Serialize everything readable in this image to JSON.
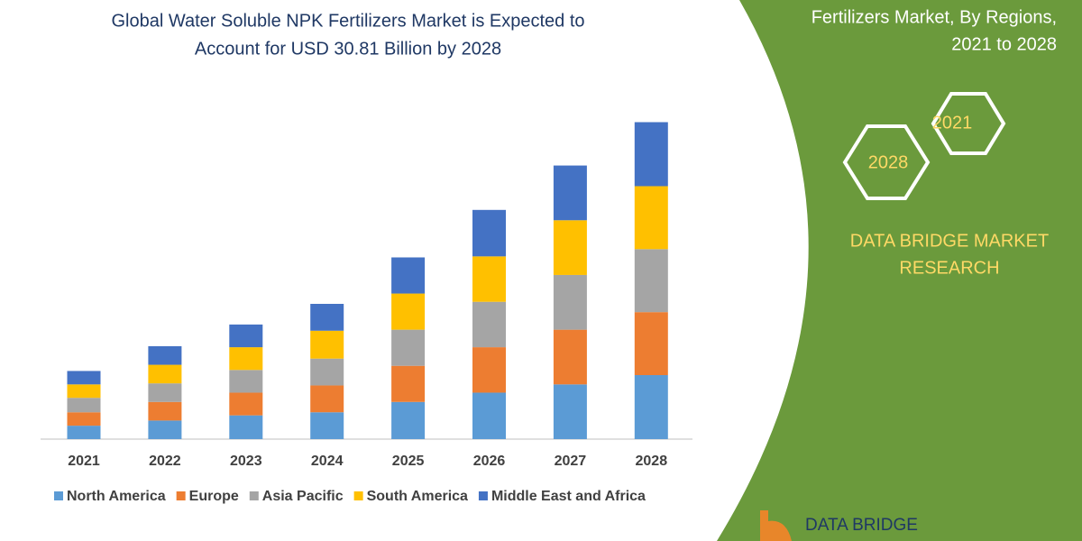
{
  "chart_data": {
    "type": "stacked-bar",
    "title": [
      "Global Water Soluble NPK Fertilizers Market is Expected to",
      "Account for USD 30.81 Billion by 2028"
    ],
    "categories": [
      "2021",
      "2022",
      "2023",
      "2024",
      "2025",
      "2026",
      "2027",
      "2028"
    ],
    "series": [
      {
        "name": "North America",
        "color": "#5b9bd5",
        "values": [
          1.3,
          1.8,
          2.3,
          2.6,
          3.6,
          4.5,
          5.3,
          6.2
        ]
      },
      {
        "name": "Europe",
        "color": "#ed7d31",
        "values": [
          1.3,
          1.8,
          2.2,
          2.6,
          3.5,
          4.4,
          5.3,
          6.1
        ]
      },
      {
        "name": "Asia Pacific",
        "color": "#a5a5a5",
        "values": [
          1.4,
          1.8,
          2.2,
          2.6,
          3.5,
          4.4,
          5.3,
          6.1
        ]
      },
      {
        "name": "South America",
        "color": "#ffc000",
        "values": [
          1.3,
          1.8,
          2.2,
          2.7,
          3.5,
          4.4,
          5.3,
          6.1
        ]
      },
      {
        "name": "Middle East and Africa",
        "color": "#4472c4",
        "values": [
          1.3,
          1.8,
          2.2,
          2.6,
          3.5,
          4.5,
          5.3,
          6.2
        ]
      }
    ]
  },
  "panel": {
    "heading": [
      "Fertilizers Market, By Regions,",
      "2021 to 2028"
    ],
    "hexagons": [
      "2021",
      "2028"
    ],
    "brand": [
      "DATA BRIDGE MARKET",
      "RESEARCH"
    ],
    "logo": "DATA BRIDGE"
  }
}
